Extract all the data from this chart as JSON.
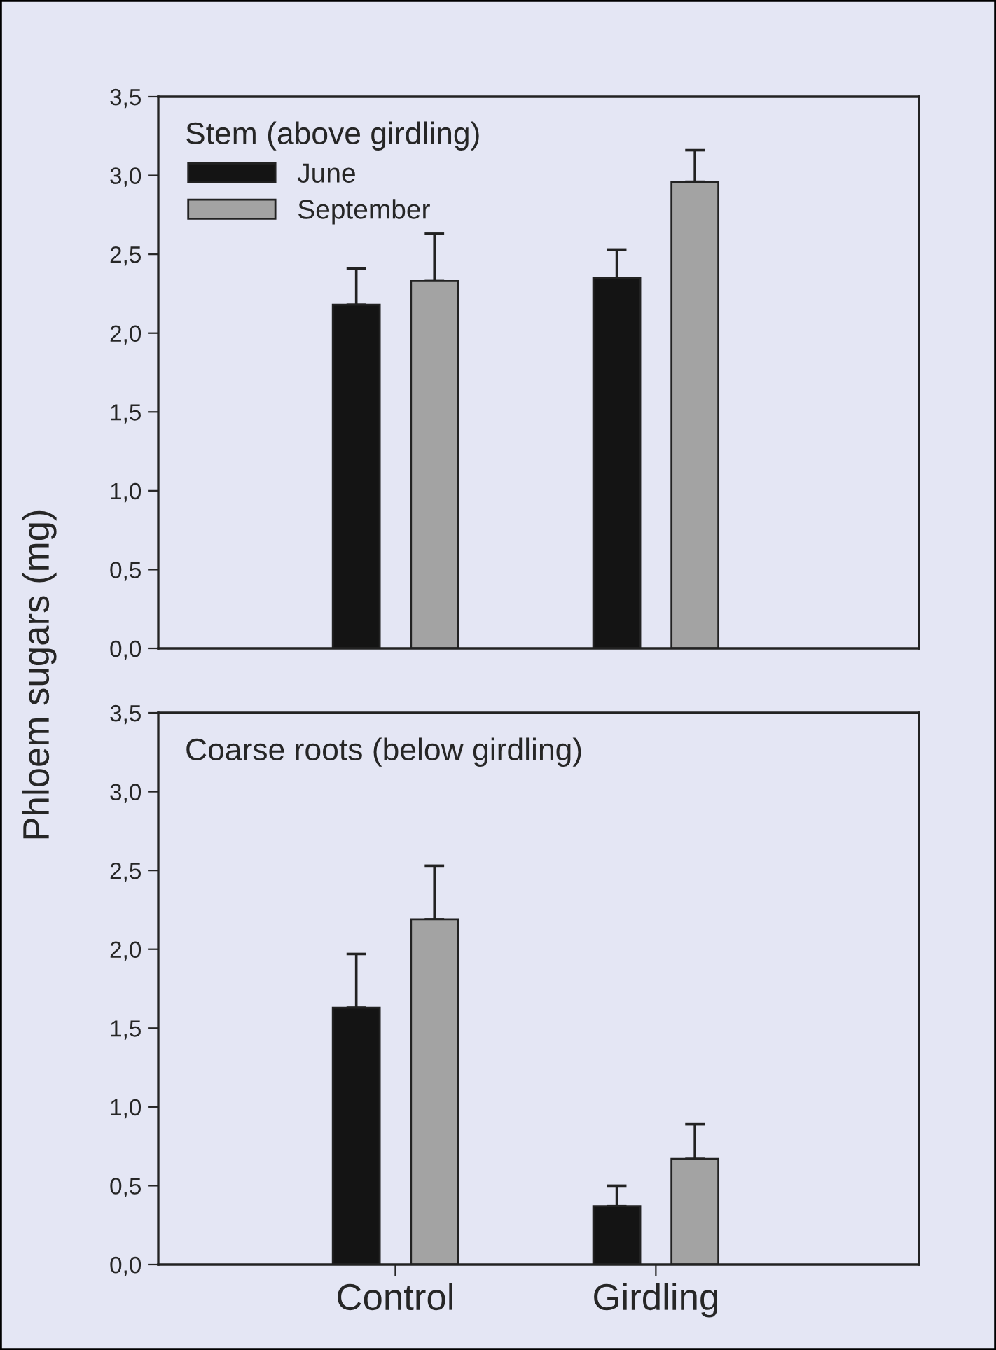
{
  "chart_data": [
    {
      "type": "bar",
      "title": "Stem (above girdling)",
      "ylabel": "Phloem sugars (mg)",
      "categories": [
        null,
        null
      ],
      "series": [
        {
          "name": "June",
          "color": "#141414",
          "values": [
            2.18,
            2.35
          ],
          "errors": [
            [
              2.18,
              2.41
            ],
            [
              2.35,
              2.53
            ]
          ]
        },
        {
          "name": "September",
          "color": "#a3a3a3",
          "values": [
            2.33,
            2.96
          ],
          "errors": [
            [
              2.33,
              2.63
            ],
            [
              2.96,
              3.16
            ]
          ]
        }
      ],
      "ylim": [
        0,
        3.5
      ],
      "yticks": [
        {
          "value": 0,
          "label": "0,0"
        },
        {
          "value": 0.5,
          "label": "0,5"
        },
        {
          "value": 1,
          "label": "1,0"
        },
        {
          "value": 1.5,
          "label": "1,5"
        },
        {
          "value": 2,
          "label": "2,0"
        },
        {
          "value": 2.5,
          "label": "2,5"
        },
        {
          "value": 3,
          "label": "3,0"
        },
        {
          "value": 3.5,
          "label": "3,5"
        }
      ],
      "legend": "top left",
      "grid": false
    },
    {
      "type": "bar",
      "title": "Coarse roots (below girdling)",
      "categories": [
        "Control",
        "Girdling"
      ],
      "series": [
        {
          "color": "#141414",
          "values": [
            1.63,
            0.37
          ],
          "errors": [
            [
              1.63,
              1.97
            ],
            [
              0.37,
              0.5
            ]
          ]
        },
        {
          "color": "#a3a3a3",
          "values": [
            2.19,
            0.67
          ],
          "errors": [
            [
              2.19,
              2.53
            ],
            [
              0.67,
              0.89
            ]
          ]
        }
      ],
      "ylim": [
        0,
        3.5
      ],
      "yticks": [
        {
          "value": 0,
          "label": "0,0"
        },
        {
          "value": 0.5,
          "label": "0,5"
        },
        {
          "value": 1,
          "label": "1,0"
        },
        {
          "value": 1.5,
          "label": "1,5"
        },
        {
          "value": 2,
          "label": "2,0"
        },
        {
          "value": 2.5,
          "label": "2,5"
        },
        {
          "value": 3,
          "label": "3,0"
        },
        {
          "value": 3.5,
          "label": "3,5"
        }
      ],
      "grid": false
    }
  ]
}
